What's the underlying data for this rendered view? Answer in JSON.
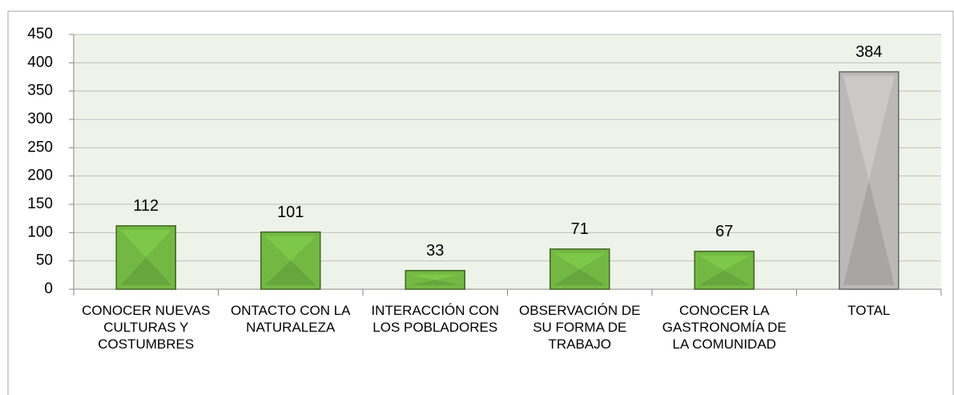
{
  "chart_data": {
    "type": "bar",
    "categories": [
      "CONOCER NUEVAS CULTURAS Y COSTUMBRES",
      "ONTACTO CON LA NATURALEZA",
      "INTERACCIÓN CON LOS POBLADORES",
      "OBSERVACIÓN DE SU FORMA DE TRABAJO",
      "CONOCER LA GASTRONOMÍA DE LA COMUNIDAD",
      "TOTAL"
    ],
    "values": [
      112,
      101,
      33,
      71,
      67,
      384
    ],
    "colors": [
      "#74b844",
      "#74b844",
      "#74b844",
      "#74b844",
      "#74b844",
      "#bdb8b8"
    ],
    "ylim": [
      0,
      450
    ],
    "yticks": [
      0,
      50,
      100,
      150,
      200,
      250,
      300,
      350,
      400,
      450
    ],
    "grid": true
  }
}
